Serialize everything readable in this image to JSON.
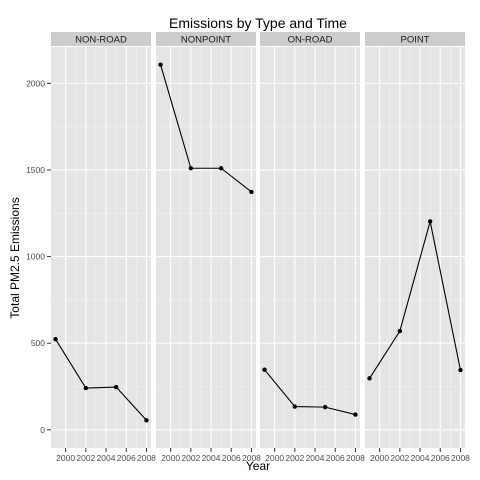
{
  "chart_data": {
    "type": "line",
    "title": "Emissions by Type and Time",
    "xlabel": "Year",
    "ylabel": "Total PM2.5 Emissions",
    "x": [
      1999,
      2002,
      2005,
      2008
    ],
    "xlim": [
      1998.55,
      2008.45
    ],
    "ylim": [
      -105,
      2210
    ],
    "x_ticks": [
      2000,
      2002,
      2004,
      2006,
      2008
    ],
    "x_tick_labels": [
      "2000",
      "2002",
      "2004",
      "2006",
      "2008"
    ],
    "y_ticks": [
      0,
      500,
      1000,
      1500,
      2000
    ],
    "y_tick_labels": [
      "0",
      "500",
      "1000",
      "1500",
      "2000"
    ],
    "grid": true,
    "facets": [
      {
        "name": "NON-ROAD",
        "values": [
          523,
          241,
          247,
          55
        ]
      },
      {
        "name": "NONPOINT",
        "values": [
          2108,
          1510,
          1510,
          1373
        ]
      },
      {
        "name": "ON-ROAD",
        "values": [
          347,
          134,
          131,
          88
        ]
      },
      {
        "name": "POINT",
        "values": [
          297,
          570,
          1203,
          345
        ]
      }
    ],
    "colors": {
      "panel_background": "#e5e5e5",
      "grid_major": "#ffffff",
      "grid_minor": "#f2f2f2",
      "strip_background": "#cccccc",
      "line": "#000000",
      "point": "#000000",
      "tick_label": "#4d4d4d"
    }
  }
}
